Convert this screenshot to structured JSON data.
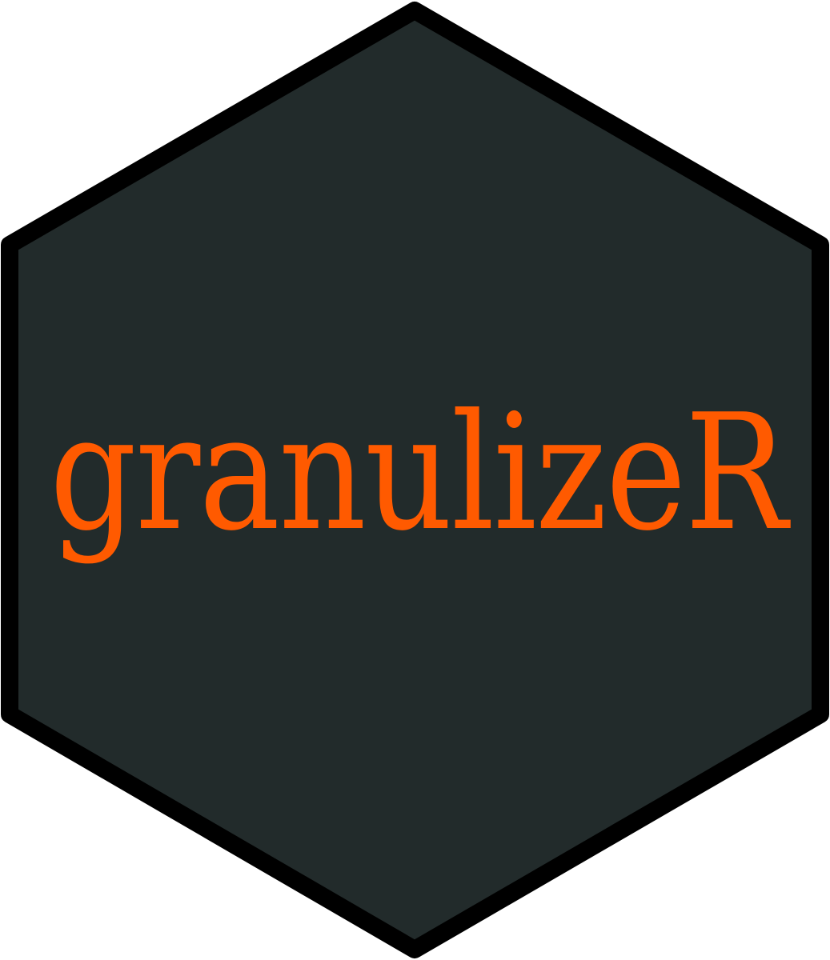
{
  "sticker": {
    "title": "granulizeR",
    "fill_color": "#222b2b",
    "border_color": "#000000",
    "text_color": "#ff5a00"
  }
}
